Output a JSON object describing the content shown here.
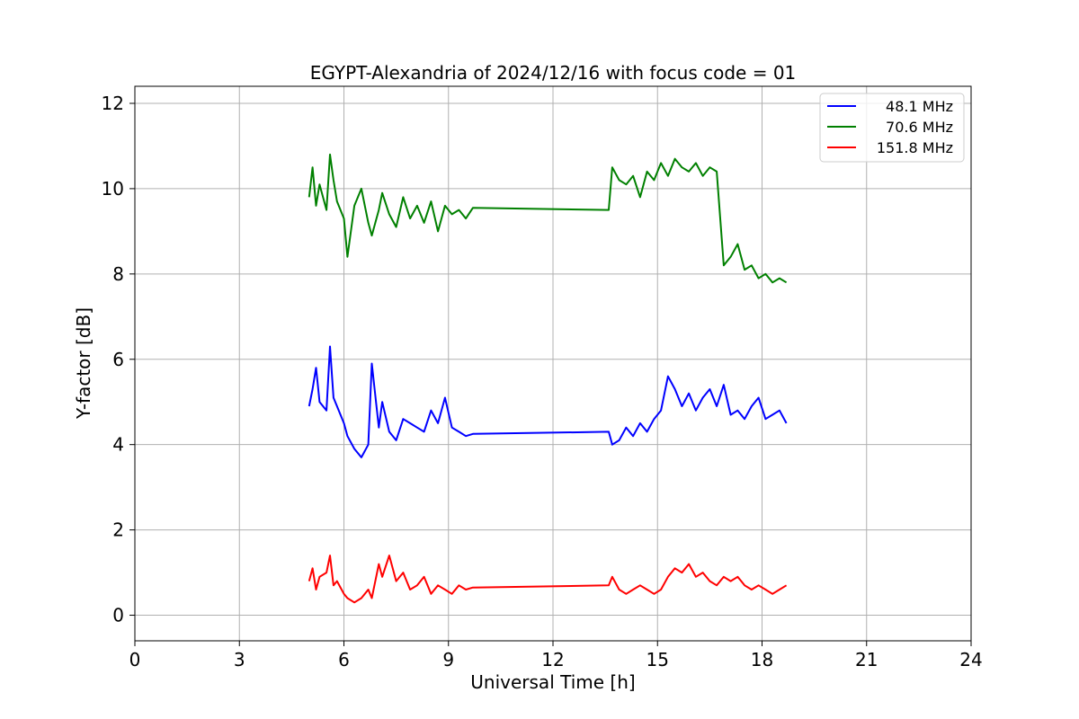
{
  "chart_data": {
    "type": "line",
    "title": "EGYPT-Alexandria of 2024/12/16 with focus code = 01",
    "xlabel": "Universal Time [h]",
    "ylabel": "Y-factor [dB]",
    "xlim": [
      0,
      24
    ],
    "ylim": [
      -0.6,
      12.4
    ],
    "xticks": [
      0,
      3,
      6,
      9,
      12,
      15,
      18,
      21,
      24
    ],
    "yticks": [
      0,
      2,
      4,
      6,
      8,
      10,
      12
    ],
    "grid": true,
    "legend_position": "top-right",
    "series": [
      {
        "name": "48.1 MHz",
        "color": "#0000ff",
        "x": [
          5.0,
          5.1,
          5.2,
          5.3,
          5.5,
          5.6,
          5.7,
          5.8,
          6.0,
          6.1,
          6.3,
          6.5,
          6.7,
          6.8,
          7.0,
          7.1,
          7.3,
          7.5,
          7.7,
          7.9,
          8.1,
          8.3,
          8.5,
          8.7,
          8.9,
          9.1,
          9.3,
          9.5,
          9.7,
          13.6,
          13.7,
          13.9,
          14.1,
          14.3,
          14.5,
          14.7,
          14.9,
          15.1,
          15.3,
          15.5,
          15.7,
          15.9,
          16.1,
          16.3,
          16.5,
          16.7,
          16.9,
          17.1,
          17.3,
          17.5,
          17.7,
          17.9,
          18.1,
          18.3,
          18.5,
          18.7
        ],
        "y": [
          4.9,
          5.3,
          5.8,
          5.0,
          4.8,
          6.3,
          5.1,
          4.9,
          4.5,
          4.2,
          3.9,
          3.7,
          4.0,
          5.9,
          4.4,
          5.0,
          4.3,
          4.1,
          4.6,
          4.5,
          4.4,
          4.3,
          4.8,
          4.5,
          5.1,
          4.4,
          4.3,
          4.2,
          4.25,
          4.3,
          4.0,
          4.1,
          4.4,
          4.2,
          4.5,
          4.3,
          4.6,
          4.8,
          5.6,
          5.3,
          4.9,
          5.2,
          4.8,
          5.1,
          5.3,
          4.9,
          5.4,
          4.7,
          4.8,
          4.6,
          4.9,
          5.1,
          4.6,
          4.7,
          4.8,
          4.5
        ]
      },
      {
        "name": "70.6 MHz",
        "color": "#008000",
        "x": [
          5.0,
          5.1,
          5.2,
          5.3,
          5.5,
          5.6,
          5.7,
          5.8,
          6.0,
          6.1,
          6.3,
          6.5,
          6.7,
          6.8,
          7.0,
          7.1,
          7.3,
          7.5,
          7.7,
          7.9,
          8.1,
          8.3,
          8.5,
          8.7,
          8.9,
          9.1,
          9.3,
          9.5,
          9.7,
          13.6,
          13.7,
          13.9,
          14.1,
          14.3,
          14.5,
          14.7,
          14.9,
          15.1,
          15.3,
          15.5,
          15.7,
          15.9,
          16.1,
          16.3,
          16.5,
          16.7,
          16.9,
          17.1,
          17.3,
          17.5,
          17.7,
          17.9,
          18.1,
          18.3,
          18.5,
          18.7
        ],
        "y": [
          9.8,
          10.5,
          9.6,
          10.1,
          9.5,
          10.8,
          10.2,
          9.7,
          9.3,
          8.4,
          9.6,
          10.0,
          9.2,
          8.9,
          9.5,
          9.9,
          9.4,
          9.1,
          9.8,
          9.3,
          9.6,
          9.2,
          9.7,
          9.0,
          9.6,
          9.4,
          9.5,
          9.3,
          9.55,
          9.5,
          10.5,
          10.2,
          10.1,
          10.3,
          9.8,
          10.4,
          10.2,
          10.6,
          10.3,
          10.7,
          10.5,
          10.4,
          10.6,
          10.3,
          10.5,
          10.4,
          8.2,
          8.4,
          8.7,
          8.1,
          8.2,
          7.9,
          8.0,
          7.8,
          7.9,
          7.8
        ]
      },
      {
        "name": "151.8 MHz",
        "color": "#ff0000",
        "x": [
          5.0,
          5.1,
          5.2,
          5.3,
          5.5,
          5.6,
          5.7,
          5.8,
          6.0,
          6.1,
          6.3,
          6.5,
          6.7,
          6.8,
          7.0,
          7.1,
          7.3,
          7.5,
          7.7,
          7.9,
          8.1,
          8.3,
          8.5,
          8.7,
          8.9,
          9.1,
          9.3,
          9.5,
          9.7,
          13.6,
          13.7,
          13.9,
          14.1,
          14.3,
          14.5,
          14.7,
          14.9,
          15.1,
          15.3,
          15.5,
          15.7,
          15.9,
          16.1,
          16.3,
          16.5,
          16.7,
          16.9,
          17.1,
          17.3,
          17.5,
          17.7,
          17.9,
          18.1,
          18.3,
          18.5,
          18.7
        ],
        "y": [
          0.8,
          1.1,
          0.6,
          0.9,
          1.0,
          1.4,
          0.7,
          0.8,
          0.5,
          0.4,
          0.3,
          0.4,
          0.6,
          0.4,
          1.2,
          0.9,
          1.4,
          0.8,
          1.0,
          0.6,
          0.7,
          0.9,
          0.5,
          0.7,
          0.6,
          0.5,
          0.7,
          0.6,
          0.65,
          0.7,
          0.9,
          0.6,
          0.5,
          0.6,
          0.7,
          0.6,
          0.5,
          0.6,
          0.9,
          1.1,
          1.0,
          1.2,
          0.9,
          1.0,
          0.8,
          0.7,
          0.9,
          0.8,
          0.9,
          0.7,
          0.6,
          0.7,
          0.6,
          0.5,
          0.6,
          0.7
        ]
      }
    ]
  }
}
